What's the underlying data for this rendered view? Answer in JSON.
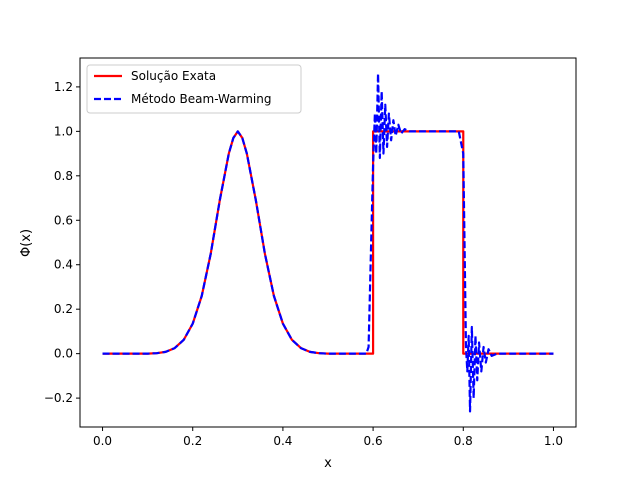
{
  "chart_data": {
    "type": "line",
    "xlabel": "x",
    "ylabel": "Φ(x)",
    "xlim": [
      -0.05,
      1.05
    ],
    "ylim": [
      -0.33,
      1.33
    ],
    "xticks": [
      0.0,
      0.2,
      0.4,
      0.6,
      0.8,
      1.0
    ],
    "xtick_labels": [
      "0.0",
      "0.2",
      "0.4",
      "0.6",
      "0.8",
      "1.0"
    ],
    "yticks": [
      -0.2,
      0.0,
      0.2,
      0.4,
      0.6,
      0.8,
      1.0,
      1.2
    ],
    "ytick_labels": [
      "−0.2",
      "0.0",
      "0.2",
      "0.4",
      "0.6",
      "0.8",
      "1.0",
      "1.2"
    ],
    "grid": false,
    "legend_position": "top-left",
    "series": [
      {
        "name": "Solução Exata",
        "color": "#ff0000",
        "style": "solid",
        "points": [
          [
            0.0,
            0.0
          ],
          [
            0.05,
            0.0
          ],
          [
            0.1,
            0.0
          ],
          [
            0.12,
            0.002
          ],
          [
            0.14,
            0.008
          ],
          [
            0.16,
            0.025
          ],
          [
            0.18,
            0.062
          ],
          [
            0.2,
            0.135
          ],
          [
            0.22,
            0.26
          ],
          [
            0.24,
            0.45
          ],
          [
            0.26,
            0.69
          ],
          [
            0.28,
            0.9
          ],
          [
            0.29,
            0.97
          ],
          [
            0.3,
            1.0
          ],
          [
            0.31,
            0.97
          ],
          [
            0.32,
            0.9
          ],
          [
            0.34,
            0.69
          ],
          [
            0.36,
            0.45
          ],
          [
            0.38,
            0.26
          ],
          [
            0.4,
            0.135
          ],
          [
            0.42,
            0.062
          ],
          [
            0.44,
            0.025
          ],
          [
            0.46,
            0.008
          ],
          [
            0.48,
            0.002
          ],
          [
            0.5,
            0.0
          ],
          [
            0.55,
            0.0
          ],
          [
            0.6,
            0.0
          ],
          [
            0.6,
            1.0
          ],
          [
            0.7,
            1.0
          ],
          [
            0.8,
            1.0
          ],
          [
            0.8,
            0.0
          ],
          [
            0.9,
            0.0
          ],
          [
            1.0,
            0.0
          ]
        ]
      },
      {
        "name": "Método Beam-Warming",
        "color": "#0000ff",
        "style": "dashed",
        "points": [
          [
            0.0,
            0.0
          ],
          [
            0.05,
            0.0
          ],
          [
            0.1,
            0.0
          ],
          [
            0.12,
            0.002
          ],
          [
            0.14,
            0.008
          ],
          [
            0.16,
            0.025
          ],
          [
            0.18,
            0.062
          ],
          [
            0.2,
            0.135
          ],
          [
            0.22,
            0.26
          ],
          [
            0.24,
            0.45
          ],
          [
            0.26,
            0.69
          ],
          [
            0.28,
            0.9
          ],
          [
            0.29,
            0.97
          ],
          [
            0.3,
            1.0
          ],
          [
            0.31,
            0.97
          ],
          [
            0.32,
            0.9
          ],
          [
            0.34,
            0.69
          ],
          [
            0.36,
            0.45
          ],
          [
            0.38,
            0.26
          ],
          [
            0.4,
            0.135
          ],
          [
            0.42,
            0.062
          ],
          [
            0.44,
            0.025
          ],
          [
            0.46,
            0.008
          ],
          [
            0.48,
            0.002
          ],
          [
            0.5,
            0.0
          ],
          [
            0.55,
            0.0
          ],
          [
            0.585,
            0.0
          ],
          [
            0.59,
            0.03
          ],
          [
            0.6,
            0.85
          ],
          [
            0.604,
            1.08
          ],
          [
            0.607,
            0.9
          ],
          [
            0.611,
            1.26
          ],
          [
            0.615,
            0.88
          ],
          [
            0.619,
            1.18
          ],
          [
            0.623,
            0.9
          ],
          [
            0.627,
            1.12
          ],
          [
            0.631,
            0.93
          ],
          [
            0.635,
            1.08
          ],
          [
            0.64,
            0.96
          ],
          [
            0.645,
            1.05
          ],
          [
            0.65,
            0.98
          ],
          [
            0.656,
            1.03
          ],
          [
            0.662,
            0.99
          ],
          [
            0.67,
            1.01
          ],
          [
            0.68,
            1.0
          ],
          [
            0.7,
            1.0
          ],
          [
            0.75,
            1.0
          ],
          [
            0.79,
            1.0
          ],
          [
            0.8,
            0.9
          ],
          [
            0.806,
            0.03
          ],
          [
            0.809,
            -0.08
          ],
          [
            0.812,
            0.08
          ],
          [
            0.815,
            -0.26
          ],
          [
            0.819,
            0.12
          ],
          [
            0.823,
            -0.2
          ],
          [
            0.827,
            0.08
          ],
          [
            0.831,
            -0.12
          ],
          [
            0.835,
            0.05
          ],
          [
            0.84,
            -0.08
          ],
          [
            0.845,
            0.03
          ],
          [
            0.85,
            -0.04
          ],
          [
            0.856,
            0.02
          ],
          [
            0.863,
            -0.01
          ],
          [
            0.875,
            0.0
          ],
          [
            0.9,
            0.0
          ],
          [
            1.0,
            0.0
          ]
        ]
      }
    ]
  }
}
